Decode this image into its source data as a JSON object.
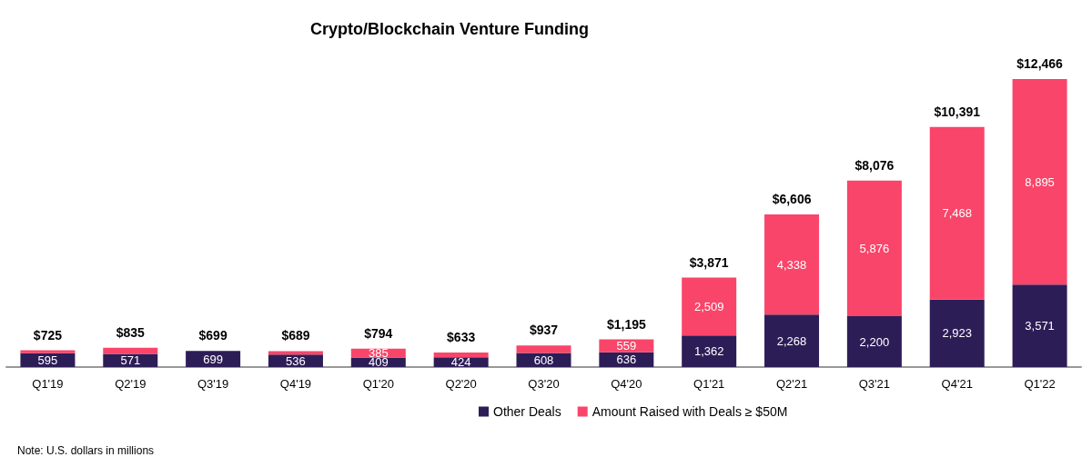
{
  "chart_data": {
    "type": "bar",
    "title": "Crypto/Blockchain Venture Funding",
    "categories": [
      "Q1'19",
      "Q2'19",
      "Q3'19",
      "Q4'19",
      "Q1'20",
      "Q2'20",
      "Q3'20",
      "Q4'20",
      "Q1'21",
      "Q2'21",
      "Q3'21",
      "Q4'21",
      "Q1'22"
    ],
    "stacked": true,
    "series": [
      {
        "name": "Other Deals",
        "color": "#2d1d57",
        "values": [
          595,
          571,
          699,
          536,
          409,
          424,
          608,
          636,
          1362,
          2268,
          2200,
          2923,
          3571
        ],
        "value_labels": [
          "595",
          "571",
          "699",
          "536",
          "409",
          "424",
          "608",
          "636",
          "1,362",
          "2,268",
          "2,200",
          "2,923",
          "3,571"
        ]
      },
      {
        "name": "Amount Raised with Deals ≥ $50M",
        "color": "#f94569",
        "values": [
          130,
          264,
          0,
          153,
          385,
          209,
          329,
          559,
          2509,
          4338,
          5876,
          7468,
          8895
        ],
        "value_labels": [
          null,
          null,
          null,
          null,
          "385",
          null,
          null,
          "559",
          "2,509",
          "4,338",
          "5,876",
          "7,468",
          "8,895"
        ]
      }
    ],
    "totals": [
      "$725",
      "$835",
      "$699",
      "$689",
      "$794",
      "$633",
      "$937",
      "$1,195",
      "$3,871",
      "$6,606",
      "$8,076",
      "$10,391",
      "$12,466"
    ],
    "legend": "bottom",
    "grid": false,
    "annotations": [
      "Note: U.S. dollars in millions"
    ]
  }
}
